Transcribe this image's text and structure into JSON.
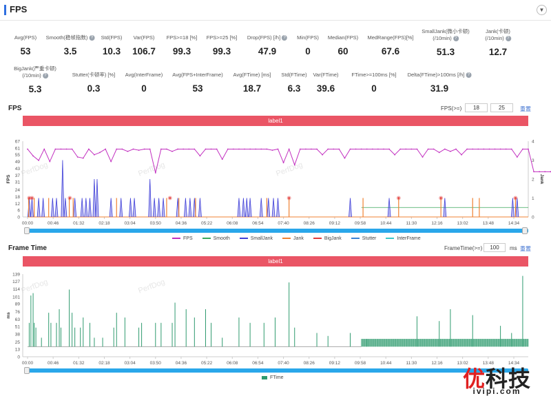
{
  "header": {
    "title": "FPS",
    "collapse_icon": "chevron-down-icon"
  },
  "stats_row1": [
    {
      "label": "Avg(FPS)",
      "value": "53",
      "help": false
    },
    {
      "label": "Smooth(稳帧指数)",
      "value": "3.5",
      "help": true
    },
    {
      "label": "Std(FPS)",
      "value": "10.3",
      "help": false
    },
    {
      "label": "Var(FPS)",
      "value": "106.7",
      "help": false
    },
    {
      "label": "FPS>=18 [%]",
      "value": "99.3",
      "help": false
    },
    {
      "label": "FPS>=25 [%]",
      "value": "99.3",
      "help": false
    },
    {
      "label": "Drop(FPS) [/h]",
      "value": "47.9",
      "help": true
    },
    {
      "label": "Min(FPS)",
      "value": "0",
      "help": false
    },
    {
      "label": "Median(FPS)",
      "value": "60",
      "help": false
    },
    {
      "label": "MedRange(FPS)[%]",
      "value": "67.6",
      "help": false
    },
    {
      "label": "SmallJank(微小卡顿)",
      "label2": "(/10min)",
      "value": "51.3",
      "help": true
    },
    {
      "label": "Jank(卡顿)",
      "label2": "(/10min)",
      "value": "12.7",
      "help": true
    }
  ],
  "stats_row2": [
    {
      "label": "BigJank(严重卡顿)",
      "label2": "(/10min)",
      "value": "5.3",
      "help": true
    },
    {
      "label": "Stutter(卡顿率) [%]",
      "value": "0.3",
      "help": false
    },
    {
      "label": "Avg(InterFrame)",
      "value": "0",
      "help": false
    },
    {
      "label": "Avg(FPS+InterFrame)",
      "value": "53",
      "help": false
    },
    {
      "label": "Avg(FTime) [ms]",
      "value": "18.7",
      "help": false
    },
    {
      "label": "Std(FTime)",
      "value": "6.3",
      "help": false
    },
    {
      "label": "Var(FTime)",
      "value": "39.6",
      "help": false
    },
    {
      "label": "FTime>=100ms [%]",
      "value": "0",
      "help": false
    },
    {
      "label": "Delta(FTime)>100ms [/h]",
      "value": "31.9",
      "help": true
    }
  ],
  "fps_section": {
    "title": "FPS",
    "threshold_label": "FPS(>=)",
    "threshold1": "18",
    "threshold2": "25",
    "reset_label": "重置",
    "label_bar": "label1",
    "watermark": "PerfDog"
  },
  "ft_section": {
    "title": "Frame Time",
    "threshold_label": "FrameTime(>=)",
    "threshold": "100",
    "unit": "ms",
    "reset_label": "重置",
    "label_bar": "label1",
    "watermark": "PerfDog"
  },
  "logo": {
    "text_red": "优",
    "text": "科技",
    "domain": "ivipi.com"
  },
  "chart_data": [
    {
      "type": "line",
      "title": "FPS",
      "ylabel": "FPS",
      "y2label": "Jank",
      "ylim": [
        0,
        67
      ],
      "y2lim": [
        0,
        4
      ],
      "yticks": [
        0,
        6,
        12,
        18,
        24,
        31,
        37,
        43,
        49,
        55,
        61,
        67
      ],
      "y2ticks": [
        0,
        1,
        2,
        3,
        4
      ],
      "xlim_seconds": [
        0,
        900
      ],
      "xticks": [
        "00:00",
        "00:46",
        "01:32",
        "02:18",
        "03:04",
        "03:50",
        "04:36",
        "05:22",
        "06:08",
        "06:54",
        "07:40",
        "08:26",
        "09:12",
        "09:58",
        "10:44",
        "11:30",
        "12:16",
        "13:02",
        "13:48",
        "14:34"
      ],
      "colors": {
        "FPS": "#c22fc0",
        "Smooth": "#39a85a",
        "SmallJank": "#3f3fd8",
        "Jank": "#f08030",
        "BigJank": "#e23b3b",
        "Stutter": "#3b82d6",
        "InterFrame": "#3cc8c8"
      },
      "legend": [
        "FPS",
        "Smooth",
        "SmallJank",
        "Jank",
        "BigJank",
        "Stutter",
        "InterFrame"
      ],
      "fps_step_seconds": 10,
      "fps": [
        60,
        54,
        50,
        60,
        49,
        60,
        60,
        60,
        60,
        53,
        52,
        60,
        55,
        57,
        60,
        49,
        60,
        60,
        58,
        60,
        59,
        60,
        60,
        39,
        60,
        60,
        58,
        60,
        60,
        60,
        60,
        54,
        60,
        60,
        60,
        51,
        60,
        60,
        60,
        60,
        60,
        60,
        60,
        60,
        59,
        60,
        48,
        60,
        46,
        60,
        60,
        60,
        60,
        55,
        60,
        60,
        60,
        52,
        60,
        60,
        60,
        60,
        60,
        60,
        60,
        60,
        55,
        60,
        60,
        60,
        60,
        53,
        60,
        60,
        57,
        60,
        58,
        60,
        55,
        60,
        60,
        60,
        60,
        60,
        60,
        60,
        60,
        60,
        53,
        60,
        60,
        40,
        40,
        40,
        40,
        40,
        40,
        40,
        40,
        40,
        40,
        40,
        40,
        40,
        40,
        40,
        40,
        40,
        40,
        40,
        40,
        40,
        40,
        40,
        40,
        40,
        40,
        40,
        40,
        40,
        40,
        40,
        40,
        40,
        40,
        0,
        40,
        40,
        40,
        40,
        40,
        40,
        40,
        40,
        40,
        40,
        40,
        40,
        40,
        40,
        40,
        40,
        40,
        40,
        40,
        40,
        40,
        40,
        40,
        40,
        40,
        40,
        40,
        40,
        40,
        40,
        40,
        40,
        40,
        40,
        40,
        40,
        40,
        40,
        40,
        40,
        40,
        40,
        40,
        40,
        40,
        40,
        40,
        40,
        40,
        40,
        40,
        40,
        40,
        40,
        40,
        40,
        40,
        40,
        40,
        40,
        40,
        40,
        40,
        40,
        40,
        40,
        40,
        36,
        40,
        40
      ],
      "smalljank_events": [
        [
          3,
          1
        ],
        [
          8,
          1
        ],
        [
          20,
          1
        ],
        [
          28,
          1
        ],
        [
          45,
          1
        ],
        [
          52,
          1
        ],
        [
          63,
          3
        ],
        [
          68,
          1
        ],
        [
          85,
          1
        ],
        [
          98,
          1
        ],
        [
          105,
          1
        ],
        [
          112,
          1
        ],
        [
          120,
          2
        ],
        [
          125,
          2
        ],
        [
          150,
          1
        ],
        [
          168,
          1
        ],
        [
          185,
          1
        ],
        [
          192,
          1
        ],
        [
          220,
          2
        ],
        [
          228,
          1
        ],
        [
          236,
          1
        ],
        [
          244,
          1
        ],
        [
          270,
          1
        ],
        [
          284,
          1
        ],
        [
          292,
          1
        ],
        [
          300,
          1
        ],
        [
          310,
          1
        ],
        [
          380,
          1
        ],
        [
          388,
          1
        ],
        [
          394,
          1
        ],
        [
          400,
          1
        ],
        [
          420,
          1
        ],
        [
          433,
          1
        ],
        [
          442,
          1
        ],
        [
          450,
          1
        ],
        [
          580,
          1
        ],
        [
          650,
          1
        ],
        [
          750,
          1
        ],
        [
          872,
          1
        ],
        [
          880,
          1
        ]
      ],
      "jank_events": [
        2,
        12,
        38,
        75,
        82,
        160,
        250,
        272,
        302,
        430,
        470,
        603,
        667,
        743,
        800,
        812,
        877
      ],
      "bigjank_events": [
        3,
        8,
        76,
        256,
        470,
        667,
        743,
        877
      ],
      "smooth_level_after_seconds": [
        600,
        0.5
      ]
    },
    {
      "type": "line",
      "title": "Frame Time",
      "ylabel": "ms",
      "ylim": [
        0,
        139
      ],
      "yticks": [
        0,
        13,
        25,
        38,
        51,
        63,
        76,
        89,
        101,
        114,
        127,
        139
      ],
      "xlim_seconds": [
        0,
        900
      ],
      "xticks": [
        "00:00",
        "00:46",
        "01:32",
        "02:18",
        "03:04",
        "03:50",
        "04:36",
        "05:22",
        "06:08",
        "06:54",
        "07:40",
        "08:26",
        "09:12",
        "09:58",
        "10:44",
        "11:30",
        "12:16",
        "13:02",
        "13:48",
        "14:34"
      ],
      "colors": {
        "FTime": "#2e9a6e"
      },
      "legend": [
        "FTime"
      ],
      "baseline_ms": 17,
      "dense_band_after_seconds": [
        600,
        17,
        30
      ],
      "spikes": [
        [
          3,
          57
        ],
        [
          6,
          103
        ],
        [
          10,
          107
        ],
        [
          12,
          57
        ],
        [
          15,
          49
        ],
        [
          25,
          32
        ],
        [
          38,
          74
        ],
        [
          42,
          57
        ],
        [
          52,
          57
        ],
        [
          57,
          80
        ],
        [
          60,
          49
        ],
        [
          75,
          113
        ],
        [
          80,
          74
        ],
        [
          85,
          49
        ],
        [
          95,
          49
        ],
        [
          100,
          66
        ],
        [
          112,
          57
        ],
        [
          120,
          32
        ],
        [
          135,
          32
        ],
        [
          155,
          49
        ],
        [
          160,
          74
        ],
        [
          175,
          66
        ],
        [
          200,
          49
        ],
        [
          205,
          57
        ],
        [
          230,
          57
        ],
        [
          240,
          57
        ],
        [
          260,
          57
        ],
        [
          265,
          91
        ],
        [
          285,
          80
        ],
        [
          300,
          66
        ],
        [
          320,
          80
        ],
        [
          330,
          57
        ],
        [
          350,
          32
        ],
        [
          380,
          66
        ],
        [
          400,
          57
        ],
        [
          425,
          57
        ],
        [
          445,
          66
        ],
        [
          470,
          125
        ],
        [
          480,
          49
        ],
        [
          520,
          40
        ],
        [
          540,
          35
        ],
        [
          580,
          40
        ],
        [
          610,
          30
        ],
        [
          700,
          68
        ],
        [
          740,
          60
        ],
        [
          760,
          80
        ],
        [
          800,
          70
        ],
        [
          850,
          52
        ],
        [
          870,
          40
        ],
        [
          890,
          136
        ]
      ]
    }
  ]
}
